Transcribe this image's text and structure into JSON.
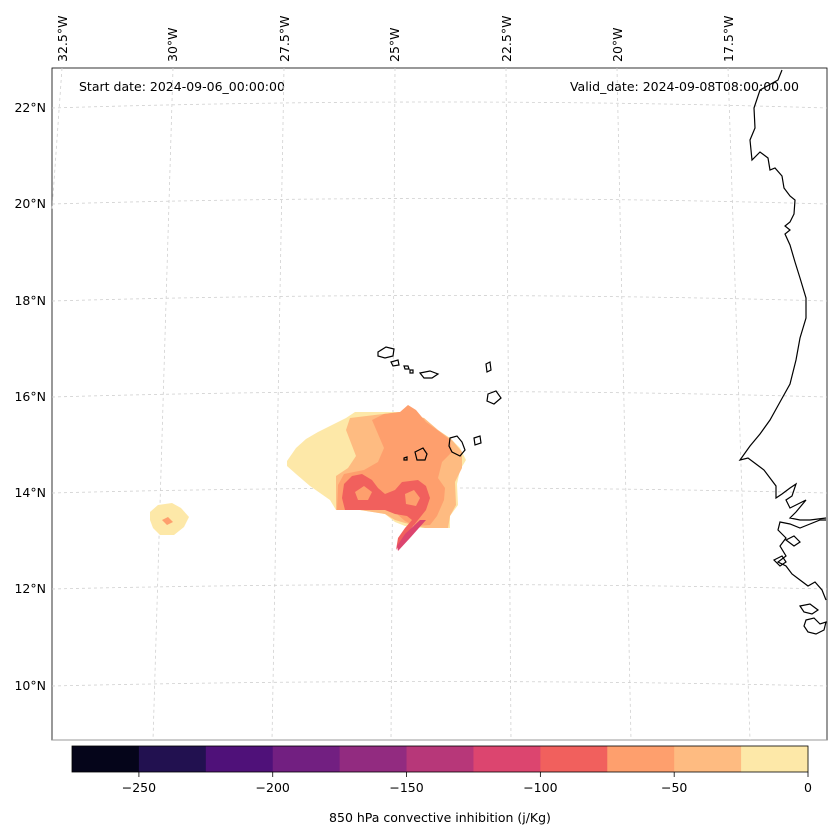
{
  "header": {
    "start_date": "Start date: 2024-09-06_00:00:00",
    "valid_date": "Valid_date: 2024-09-08T08:00:00.00"
  },
  "map": {
    "lon_labels": [
      "32.5°W",
      "30°W",
      "27.5°W",
      "25°W",
      "22.5°W",
      "20°W",
      "17.5°W"
    ],
    "lat_labels": [
      "22°N",
      "20°N",
      "18°N",
      "16°N",
      "14°N",
      "12°N",
      "10°N"
    ],
    "variable": "850 hPa convective inhibition",
    "unit": "j/Kg"
  },
  "colorbar": {
    "label": "850 hPa convective inhibition (j/Kg)",
    "ticks": [
      "−250",
      "−200",
      "−150",
      "−100",
      "−50",
      "0"
    ],
    "levels": [
      -275,
      -250,
      -225,
      -200,
      -175,
      -150,
      -125,
      -100,
      -75,
      -50,
      -25,
      0
    ],
    "colors": [
      "#05051a",
      "#221150",
      "#4f1179",
      "#721f81",
      "#922b80",
      "#b73779",
      "#dc456f",
      "#f1605d",
      "#fe9f6d",
      "#febb81",
      "#fde8a8"
    ]
  },
  "field_colors": {
    "level_0": "#fde8a8",
    "level_25": "#febb81",
    "level_50": "#fe9f6d",
    "level_75": "#f1605d"
  }
}
